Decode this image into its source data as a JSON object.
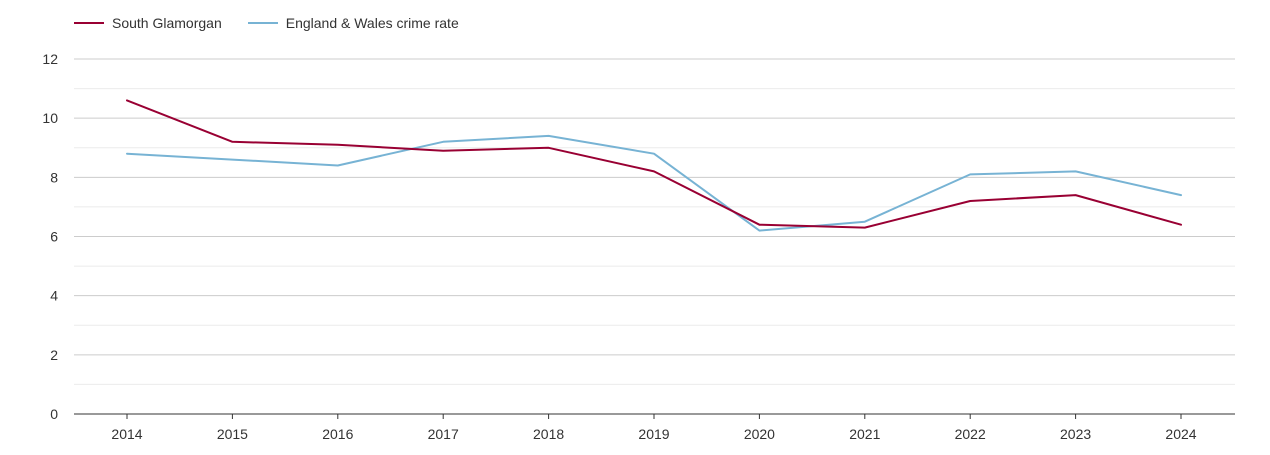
{
  "chart_data": {
    "type": "line",
    "title": "",
    "xlabel": "",
    "ylabel": "",
    "x": [
      "2014",
      "2015",
      "2016",
      "2017",
      "2018",
      "2019",
      "2020",
      "2021",
      "2022",
      "2023",
      "2024"
    ],
    "ylim": [
      0,
      12
    ],
    "yticks": [
      0,
      2,
      4,
      6,
      8,
      10,
      12
    ],
    "grid": true,
    "legend_position": "top-left",
    "series": [
      {
        "name": "South Glamorgan",
        "color": "#990033",
        "values": [
          10.6,
          9.2,
          9.1,
          8.9,
          9.0,
          8.2,
          6.4,
          6.3,
          7.2,
          7.4,
          6.4
        ]
      },
      {
        "name": "England & Wales crime rate",
        "color": "#77b3d4",
        "values": [
          8.8,
          8.6,
          8.4,
          9.2,
          9.4,
          8.8,
          6.2,
          6.5,
          8.1,
          8.2,
          7.4
        ]
      }
    ]
  }
}
